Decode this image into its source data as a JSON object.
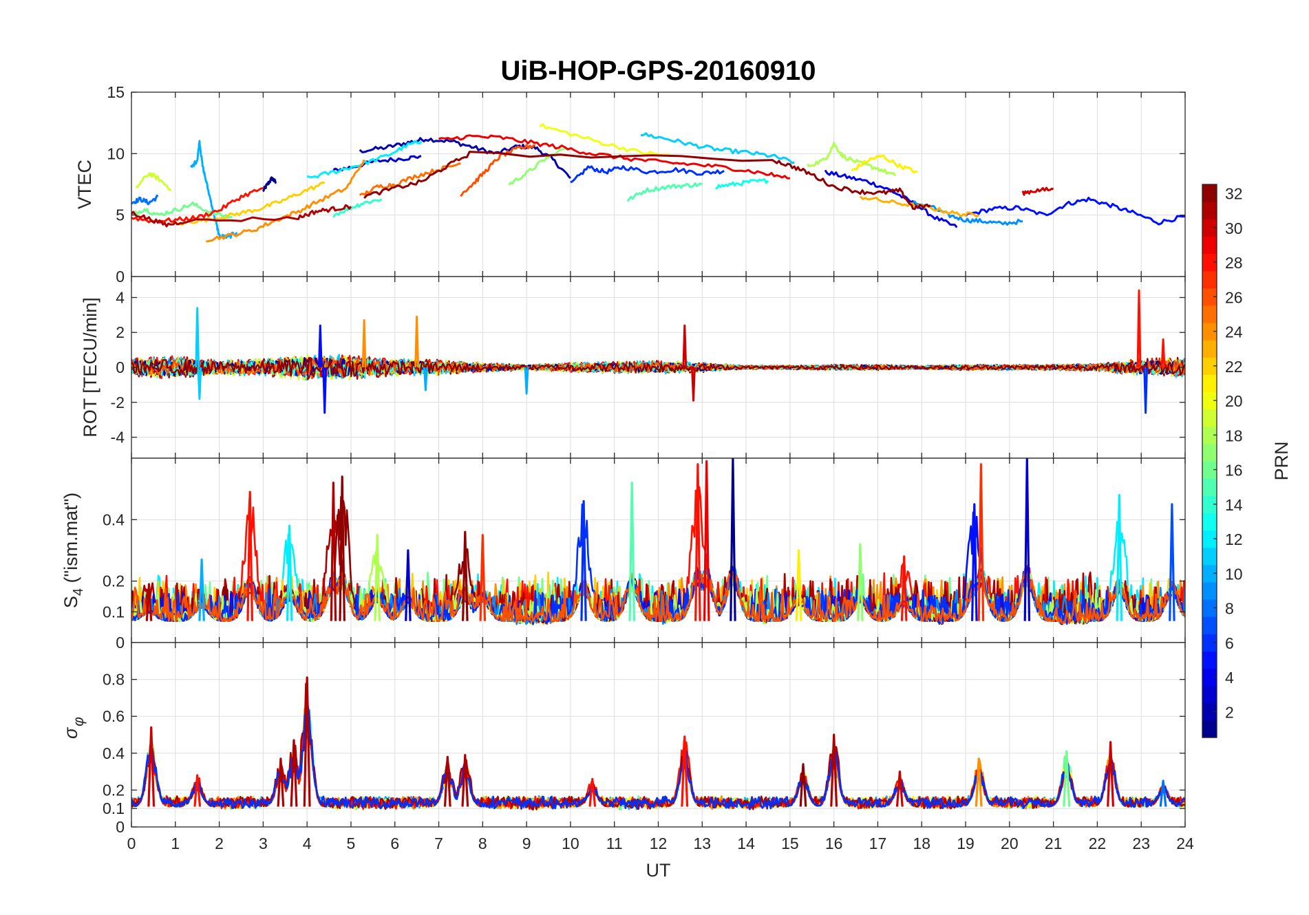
{
  "chart_data": {
    "title": "UiB-HOP-GPS-20160910",
    "xlabel": "UT",
    "xlim": [
      0,
      24
    ],
    "xticks": [
      0,
      1,
      2,
      3,
      4,
      5,
      6,
      7,
      8,
      9,
      10,
      11,
      12,
      13,
      14,
      15,
      16,
      17,
      18,
      19,
      20,
      21,
      22,
      23,
      24
    ],
    "grid": true,
    "colorbar": {
      "label": "PRN",
      "range": [
        1,
        32
      ],
      "colormap": "jet",
      "ticks": [
        2,
        4,
        6,
        8,
        10,
        12,
        14,
        16,
        18,
        20,
        22,
        24,
        26,
        28,
        30,
        32
      ]
    },
    "panels": [
      {
        "type": "line",
        "ylabel": "VTEC",
        "ylim": [
          0,
          15
        ],
        "yticks": [
          0,
          5,
          10,
          15
        ],
        "series": [
          {
            "prn": 1,
            "x": [
              3.0,
              3.1,
              3.2,
              3.3
            ],
            "y": [
              7.0,
              7.5,
              8.0,
              7.6
            ]
          },
          {
            "prn": 2,
            "x": [
              5.2,
              5.8,
              6.3,
              6.7,
              7.3,
              7.8,
              8.3,
              8.8,
              9.2,
              9.6,
              10.0
            ],
            "y": [
              10.2,
              10.5,
              10.9,
              11.2,
              11.0,
              10.5,
              10.0,
              10.6,
              10.5,
              9.5,
              8.0
            ]
          },
          {
            "prn": 3,
            "x": [
              4.6,
              5.0,
              5.6,
              6.2,
              6.6
            ],
            "y": [
              8.6,
              8.9,
              9.4,
              9.6,
              9.8
            ]
          },
          {
            "prn": 4,
            "x": [
              15.8,
              16.3,
              16.8,
              17.3,
              17.8,
              18.3,
              18.8
            ],
            "y": [
              8.5,
              8.1,
              7.7,
              7.0,
              6.0,
              4.8,
              4.0
            ]
          },
          {
            "prn": 5,
            "x": [
              19.0,
              19.6,
              20.2,
              20.8,
              21.3,
              21.8,
              22.3,
              22.8,
              23.4,
              24.0
            ],
            "y": [
              5.0,
              5.5,
              5.6,
              5.0,
              5.9,
              6.3,
              5.8,
              5.2,
              4.4,
              4.9
            ]
          },
          {
            "prn": 6,
            "x": [
              10.0,
              10.4,
              10.8,
              11.2,
              11.8,
              12.4,
              13.0,
              13.5
            ],
            "y": [
              7.5,
              8.9,
              8.5,
              8.9,
              8.5,
              8.7,
              8.4,
              8.6
            ]
          },
          {
            "prn": 8,
            "x": [
              0.0,
              0.2,
              0.4,
              0.6
            ],
            "y": [
              6.0,
              6.3,
              6.0,
              6.5
            ]
          },
          {
            "prn": 9,
            "x": [
              17.8,
              18.2,
              18.6,
              19.0,
              19.4,
              19.8,
              20.3
            ],
            "y": [
              6.0,
              5.7,
              5.0,
              4.6,
              4.5,
              4.3,
              4.5
            ]
          },
          {
            "prn": 10,
            "x": [
              1.35,
              1.5,
              1.55,
              1.62,
              1.75,
              1.9,
              2.0,
              2.2,
              2.4
            ],
            "y": [
              8.8,
              9.5,
              11.0,
              9.0,
              7.0,
              4.8,
              3.3,
              3.2,
              3.6
            ]
          },
          {
            "prn": 11,
            "x": [
              11.6,
              12.2,
              12.8,
              13.4,
              14.0,
              14.6,
              15.1
            ],
            "y": [
              11.6,
              11.2,
              10.7,
              10.3,
              10.1,
              9.8,
              9.3
            ]
          },
          {
            "prn": 12,
            "x": [
              4.0,
              4.6,
              5.2,
              5.8,
              6.3,
              6.6
            ],
            "y": [
              8.0,
              8.5,
              9.1,
              9.8,
              10.7,
              11.0
            ]
          },
          {
            "prn": 13,
            "x": [
              13.3,
              13.7,
              14.1,
              14.5
            ],
            "y": [
              7.3,
              7.5,
              7.7,
              7.8
            ]
          },
          {
            "prn": 14,
            "x": [
              4.6,
              5.0,
              5.3,
              5.7
            ],
            "y": [
              5.0,
              5.6,
              6.0,
              6.3
            ]
          },
          {
            "prn": 15,
            "x": [
              11.3,
              11.7,
              12.2,
              12.6,
              13.0
            ],
            "y": [
              6.2,
              7.0,
              7.3,
              7.4,
              7.5
            ]
          },
          {
            "prn": 16,
            "x": [
              0.0,
              0.3,
              0.6,
              1.0,
              1.4,
              1.8,
              2.3
            ],
            "y": [
              5.0,
              5.5,
              5.0,
              5.4,
              5.9,
              5.2,
              4.8
            ]
          },
          {
            "prn": 17,
            "x": [
              8.6,
              9.0,
              9.4,
              9.9
            ],
            "y": [
              7.5,
              8.4,
              9.5,
              10.5
            ]
          },
          {
            "prn": 18,
            "x": [
              15.4,
              15.8,
              16.0,
              16.2,
              16.6,
              17.0,
              17.4
            ],
            "y": [
              9.0,
              9.5,
              10.8,
              9.8,
              9.2,
              8.8,
              8.2
            ]
          },
          {
            "prn": 19,
            "x": [
              0.1,
              0.4,
              0.6,
              0.9
            ],
            "y": [
              7.2,
              8.4,
              8.0,
              7.1
            ]
          },
          {
            "prn": 20,
            "x": [
              9.3,
              10.0,
              10.8,
              11.6,
              12.3
            ],
            "y": [
              12.3,
              11.6,
              10.8,
              10.1,
              9.8
            ]
          },
          {
            "prn": 21,
            "x": [
              16.4,
              16.8,
              17.1,
              17.5,
              17.9
            ],
            "y": [
              8.6,
              9.5,
              9.8,
              9.0,
              8.5
            ]
          },
          {
            "prn": 22,
            "x": [
              1.0,
              1.4,
              1.9,
              2.4,
              2.9,
              3.4,
              3.9,
              4.4
            ],
            "y": [
              4.2,
              4.5,
              4.7,
              5.1,
              5.5,
              6.1,
              6.9,
              7.6
            ]
          },
          {
            "prn": 23,
            "x": [
              16.6,
              17.2,
              17.8,
              18.3,
              18.8,
              19.3
            ],
            "y": [
              6.5,
              6.1,
              5.8,
              5.5,
              5.1,
              5.0
            ]
          },
          {
            "prn": 24,
            "x": [
              1.7,
              2.2,
              2.8,
              3.3,
              3.8,
              4.3,
              4.9,
              5.3
            ],
            "y": [
              3.0,
              3.3,
              3.8,
              4.6,
              5.3,
              6.2,
              7.2,
              9.5
            ]
          },
          {
            "prn": 25,
            "x": [
              5.2,
              5.6,
              6.0,
              6.5,
              7.0,
              7.5
            ],
            "y": [
              6.5,
              7.3,
              7.5,
              8.2,
              8.7,
              9.2
            ]
          },
          {
            "prn": 26,
            "x": [
              7.5,
              7.8,
              8.1,
              8.4,
              8.8,
              9.2
            ],
            "y": [
              6.7,
              7.6,
              8.7,
              9.8,
              10.4,
              10.7
            ]
          },
          {
            "prn": 28,
            "x": [
              0.0,
              0.5,
              1.0,
              1.5,
              2.0,
              2.5,
              3.0
            ],
            "y": [
              4.8,
              4.5,
              4.6,
              4.8,
              5.4,
              6.5,
              7.2
            ]
          },
          {
            "prn": 29,
            "x": [
              7.0,
              7.7,
              8.4,
              9.1,
              9.8,
              10.5,
              11.3,
              12.1,
              12.9,
              13.7,
              14.4,
              15.0
            ],
            "y": [
              11.1,
              11.4,
              11.3,
              10.9,
              10.5,
              10.0,
              9.6,
              9.3,
              9.1,
              8.8,
              8.4,
              8.0
            ]
          },
          {
            "prn": 30,
            "x": [
              20.3,
              20.6,
              21.0
            ],
            "y": [
              6.8,
              7.0,
              7.1
            ]
          },
          {
            "prn": 31,
            "x": [
              0.0,
              0.4,
              0.8,
              1.2,
              3.8,
              4.2,
              4.6,
              5.0
            ],
            "y": [
              5.2,
              4.7,
              4.2,
              4.5,
              4.8,
              5.3,
              5.5,
              5.7
            ]
          },
          {
            "prn": 32,
            "x": [
              5.3,
              6.0,
              6.6,
              7.1,
              7.7,
              14.6,
              15.1,
              15.5,
              16.0,
              16.6,
              17.1,
              17.5,
              17.8,
              18.2
            ],
            "y": [
              6.5,
              7.2,
              7.7,
              8.8,
              10.0,
              9.5,
              8.9,
              8.3,
              7.3,
              6.9,
              6.8,
              7.0,
              5.6,
              5.8
            ]
          }
        ]
      },
      {
        "type": "line",
        "ylabel": "ROT [TECU/min]",
        "ylim": [
          -5.2,
          5.2
        ],
        "yticks": [
          -4,
          -2,
          0,
          2,
          4
        ],
        "envelope": {
          "x": [
            0,
            1,
            2,
            3,
            4,
            5,
            6,
            7,
            8,
            9,
            10,
            11,
            12,
            13,
            14,
            15,
            16,
            17,
            18,
            19,
            20,
            21,
            22,
            23,
            24
          ],
          "amplitude": [
            1.0,
            1.2,
            0.8,
            0.9,
            1.4,
            1.3,
            0.9,
            0.8,
            0.5,
            0.3,
            0.5,
            0.6,
            0.7,
            0.5,
            0.2,
            0.2,
            0.3,
            0.3,
            0.2,
            0.3,
            0.3,
            0.3,
            0.4,
            0.9,
            1.1
          ]
        },
        "spikes": [
          {
            "x": 1.5,
            "y": 3.4,
            "prn": 11
          },
          {
            "x": 1.55,
            "y": -1.8,
            "prn": 11
          },
          {
            "x": 4.3,
            "y": 2.4,
            "prn": 5
          },
          {
            "x": 4.4,
            "y": -2.6,
            "prn": 5
          },
          {
            "x": 5.3,
            "y": 2.7,
            "prn": 24
          },
          {
            "x": 6.5,
            "y": 2.9,
            "prn": 24
          },
          {
            "x": 6.7,
            "y": -1.3,
            "prn": 10
          },
          {
            "x": 9.0,
            "y": -1.5,
            "prn": 10
          },
          {
            "x": 12.6,
            "y": 2.4,
            "prn": 30
          },
          {
            "x": 12.8,
            "y": -1.9,
            "prn": 30
          },
          {
            "x": 22.95,
            "y": 4.4,
            "prn": 28
          },
          {
            "x": 23.1,
            "y": -2.6,
            "prn": 6
          },
          {
            "x": 23.5,
            "y": 1.6,
            "prn": 28
          }
        ]
      },
      {
        "type": "line",
        "ylabel": "S4 (\"ism.mat\")",
        "ylim": [
          0,
          0.6
        ],
        "yticks": [
          0,
          0.1,
          0.2,
          0.4
        ],
        "baseline": 0.07,
        "peaks": [
          {
            "x": 0.4,
            "y": 0.19,
            "prn": 31
          },
          {
            "x": 1.6,
            "y": 0.27,
            "prn": 10
          },
          {
            "x": 2.7,
            "y": 0.49,
            "prn": 28
          },
          {
            "x": 3.6,
            "y": 0.38,
            "prn": 12
          },
          {
            "x": 4.6,
            "y": 0.52,
            "prn": 31
          },
          {
            "x": 4.8,
            "y": 0.54,
            "prn": 32
          },
          {
            "x": 5.6,
            "y": 0.35,
            "prn": 18
          },
          {
            "x": 6.3,
            "y": 0.3,
            "prn": 3
          },
          {
            "x": 7.6,
            "y": 0.36,
            "prn": 32
          },
          {
            "x": 8.0,
            "y": 0.35,
            "prn": 27
          },
          {
            "x": 10.3,
            "y": 0.46,
            "prn": 6
          },
          {
            "x": 11.4,
            "y": 0.52,
            "prn": 15
          },
          {
            "x": 12.9,
            "y": 0.58,
            "prn": 28
          },
          {
            "x": 13.1,
            "y": 0.59,
            "prn": 29
          },
          {
            "x": 13.7,
            "y": 0.6,
            "prn": 1
          },
          {
            "x": 15.2,
            "y": 0.3,
            "prn": 21
          },
          {
            "x": 16.6,
            "y": 0.32,
            "prn": 17
          },
          {
            "x": 17.6,
            "y": 0.28,
            "prn": 28
          },
          {
            "x": 19.2,
            "y": 0.45,
            "prn": 5
          },
          {
            "x": 19.35,
            "y": 0.58,
            "prn": 27
          },
          {
            "x": 20.4,
            "y": 0.6,
            "prn": 3
          },
          {
            "x": 22.5,
            "y": 0.48,
            "prn": 12
          },
          {
            "x": 23.7,
            "y": 0.45,
            "prn": 7
          }
        ]
      },
      {
        "type": "line",
        "ylabel": "σφ",
        "ylim": [
          0,
          1.0
        ],
        "yticks": [
          0,
          0.1,
          0.2,
          0.4,
          0.6,
          0.8
        ],
        "baseline": 0.11,
        "peaks": [
          {
            "x": 0.45,
            "y": 0.54,
            "prn": 30
          },
          {
            "x": 1.5,
            "y": 0.28,
            "prn": 28
          },
          {
            "x": 3.4,
            "y": 0.37,
            "prn": 31
          },
          {
            "x": 3.7,
            "y": 0.47,
            "prn": 31
          },
          {
            "x": 4.0,
            "y": 0.81,
            "prn": 31
          },
          {
            "x": 7.2,
            "y": 0.38,
            "prn": 31
          },
          {
            "x": 7.6,
            "y": 0.39,
            "prn": 31
          },
          {
            "x": 10.5,
            "y": 0.26,
            "prn": 28
          },
          {
            "x": 12.6,
            "y": 0.49,
            "prn": 28
          },
          {
            "x": 15.3,
            "y": 0.34,
            "prn": 32
          },
          {
            "x": 16.0,
            "y": 0.5,
            "prn": 31
          },
          {
            "x": 17.5,
            "y": 0.3,
            "prn": 30
          },
          {
            "x": 19.3,
            "y": 0.37,
            "prn": 24
          },
          {
            "x": 21.3,
            "y": 0.41,
            "prn": 16
          },
          {
            "x": 22.3,
            "y": 0.46,
            "prn": 30
          },
          {
            "x": 23.5,
            "y": 0.25,
            "prn": 8
          }
        ]
      }
    ]
  }
}
